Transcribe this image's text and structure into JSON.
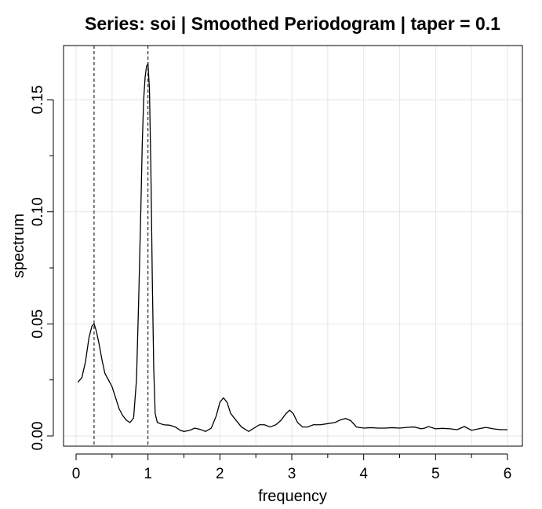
{
  "chart_data": {
    "type": "line",
    "title": "Series: soi  |  Smoothed Periodogram  |  taper = 0.1",
    "xlabel": "frequency",
    "ylabel": "spectrum",
    "xlim": [
      0,
      6
    ],
    "ylim": [
      0,
      0.165
    ],
    "grid": true,
    "x_ticks": [
      {
        "value": 0,
        "label": "0"
      },
      {
        "value": 1,
        "label": "1"
      },
      {
        "value": 2,
        "label": "2"
      },
      {
        "value": 3,
        "label": "3"
      },
      {
        "value": 4,
        "label": "4"
      },
      {
        "value": 5,
        "label": "5"
      },
      {
        "value": 6,
        "label": "6"
      }
    ],
    "y_ticks": [
      {
        "value": 0.0,
        "label": "0.00"
      },
      {
        "value": 0.05,
        "label": "0.05"
      },
      {
        "value": 0.1,
        "label": "0.10"
      },
      {
        "value": 0.15,
        "label": "0.15"
      }
    ],
    "reference_lines_x": [
      0.25,
      1.0
    ],
    "series": [
      {
        "x": [
          0.025,
          0.08,
          0.13,
          0.18,
          0.22,
          0.25,
          0.28,
          0.32,
          0.36,
          0.4,
          0.45,
          0.5,
          0.55,
          0.6,
          0.65,
          0.7,
          0.75,
          0.8,
          0.84,
          0.87,
          0.9,
          0.92,
          0.94,
          0.96,
          0.98,
          1.0,
          1.02,
          1.04,
          1.06,
          1.08,
          1.1,
          1.13,
          1.17,
          1.22,
          1.3,
          1.38,
          1.45,
          1.5,
          1.58,
          1.65,
          1.72,
          1.8,
          1.88,
          1.95,
          2.0,
          2.05,
          2.1,
          2.15,
          2.2,
          2.3,
          2.4,
          2.45,
          2.5,
          2.55,
          2.62,
          2.7,
          2.78,
          2.85,
          2.92,
          2.97,
          3.02,
          3.08,
          3.15,
          3.22,
          3.3,
          3.4,
          3.5,
          3.6,
          3.68,
          3.75,
          3.82,
          3.9,
          4.0,
          4.1,
          4.2,
          4.3,
          4.4,
          4.5,
          4.6,
          4.7,
          4.8,
          4.85,
          4.9,
          5.0,
          5.1,
          5.2,
          5.3,
          5.35,
          5.4,
          5.5,
          5.6,
          5.7,
          5.8,
          5.9,
          6.0
        ],
        "y": [
          0.024,
          0.026,
          0.033,
          0.044,
          0.049,
          0.05,
          0.047,
          0.041,
          0.034,
          0.028,
          0.025,
          0.022,
          0.017,
          0.012,
          0.009,
          0.007,
          0.006,
          0.008,
          0.025,
          0.06,
          0.1,
          0.13,
          0.15,
          0.16,
          0.165,
          0.166,
          0.155,
          0.12,
          0.07,
          0.03,
          0.01,
          0.006,
          0.0055,
          0.005,
          0.0048,
          0.004,
          0.0025,
          0.002,
          0.0025,
          0.0035,
          0.003,
          0.002,
          0.0035,
          0.009,
          0.015,
          0.017,
          0.015,
          0.01,
          0.008,
          0.004,
          0.002,
          0.003,
          0.004,
          0.005,
          0.005,
          0.004,
          0.005,
          0.007,
          0.01,
          0.0115,
          0.01,
          0.006,
          0.004,
          0.004,
          0.005,
          0.005,
          0.0055,
          0.006,
          0.0072,
          0.0078,
          0.0068,
          0.004,
          0.0035,
          0.0037,
          0.0035,
          0.0035,
          0.0037,
          0.0035,
          0.0038,
          0.004,
          0.0032,
          0.0035,
          0.0042,
          0.0032,
          0.0034,
          0.0032,
          0.0028,
          0.0035,
          0.0042,
          0.0025,
          0.0032,
          0.0038,
          0.0032,
          0.0028,
          0.0028
        ]
      }
    ]
  }
}
